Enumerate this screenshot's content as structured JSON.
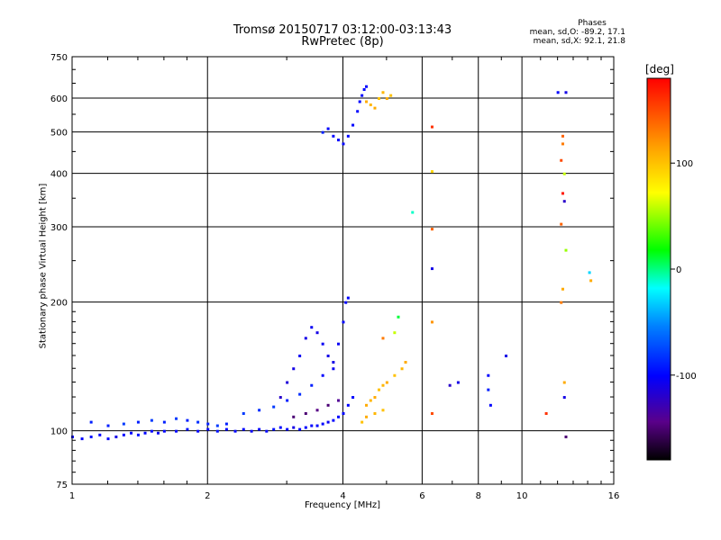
{
  "title_line1": "Tromsø 20150717 03:12:00-03:13:43",
  "title_line2": "RwPretec (8p)",
  "phases": {
    "heading": "Phases",
    "line_o": "mean, sd,O: -89.2, 17.1",
    "line_x": "mean, sd,X:  92.1, 21.8"
  },
  "colorbar": {
    "unit_label": "[deg]",
    "ticks": [
      {
        "value": 100,
        "label": "100"
      },
      {
        "value": 0,
        "label": "0"
      },
      {
        "value": -100,
        "label": "-100"
      }
    ],
    "range": [
      -180,
      180
    ]
  },
  "chart_data": {
    "type": "scatter",
    "xlabel": "Frequency [MHz]",
    "ylabel": "Stationary phase Virtual Height [km]",
    "x_scale": "log",
    "y_scale": "log",
    "xlim": [
      1,
      16
    ],
    "ylim": [
      75,
      750
    ],
    "x_ticks": [
      1,
      2,
      4,
      6,
      8,
      10,
      16
    ],
    "x_tick_labels": [
      "1",
      "2",
      "4",
      "6",
      "8",
      "10",
      "16"
    ],
    "y_ticks": [
      75,
      100,
      200,
      300,
      400,
      500,
      600,
      750
    ],
    "y_tick_labels": [
      "75",
      "100",
      "200",
      "300",
      "400",
      "500",
      "600",
      "750"
    ],
    "grid": true,
    "series": [
      {
        "color_by": "phase_deg",
        "points": [
          [
            1.0,
            97,
            -100
          ],
          [
            1.05,
            96,
            -100
          ],
          [
            1.1,
            97,
            -95
          ],
          [
            1.15,
            98,
            -100
          ],
          [
            1.2,
            96,
            -100
          ],
          [
            1.25,
            97,
            -110
          ],
          [
            1.3,
            98,
            -100
          ],
          [
            1.35,
            99,
            -100
          ],
          [
            1.4,
            98,
            -95
          ],
          [
            1.45,
            99,
            -100
          ],
          [
            1.5,
            100,
            -100
          ],
          [
            1.55,
            99,
            -105
          ],
          [
            1.6,
            100,
            -100
          ],
          [
            1.7,
            100,
            -100
          ],
          [
            1.8,
            101,
            -95
          ],
          [
            1.9,
            100,
            -100
          ],
          [
            2.0,
            101,
            -100
          ],
          [
            2.1,
            100,
            -95
          ],
          [
            2.2,
            101,
            -100
          ],
          [
            2.3,
            100,
            -100
          ],
          [
            2.4,
            101,
            -100
          ],
          [
            2.5,
            100,
            -105
          ],
          [
            2.6,
            101,
            -100
          ],
          [
            2.7,
            100,
            -100
          ],
          [
            2.8,
            101,
            -95
          ],
          [
            2.9,
            102,
            -100
          ],
          [
            3.0,
            101,
            -100
          ],
          [
            3.1,
            102,
            -110
          ],
          [
            3.2,
            101,
            -100
          ],
          [
            3.3,
            102,
            -100
          ],
          [
            3.4,
            103,
            -100
          ],
          [
            3.5,
            103,
            -100
          ],
          [
            3.6,
            104,
            -100
          ],
          [
            3.7,
            105,
            -105
          ],
          [
            3.8,
            106,
            -100
          ],
          [
            3.9,
            108,
            -100
          ],
          [
            4.0,
            110,
            -100
          ],
          [
            4.1,
            115,
            -100
          ],
          [
            4.2,
            120,
            -100
          ],
          [
            1.1,
            105,
            -90
          ],
          [
            1.2,
            103,
            -90
          ],
          [
            1.3,
            104,
            -80
          ],
          [
            1.4,
            105,
            -90
          ],
          [
            1.5,
            106,
            -80
          ],
          [
            1.6,
            105,
            -90
          ],
          [
            1.7,
            107,
            -80
          ],
          [
            1.8,
            106,
            -90
          ],
          [
            1.9,
            105,
            -85
          ],
          [
            2.0,
            104,
            -90
          ],
          [
            2.1,
            103,
            -80
          ],
          [
            2.2,
            104,
            -90
          ],
          [
            2.4,
            110,
            -80
          ],
          [
            2.6,
            112,
            -85
          ],
          [
            2.8,
            114,
            -80
          ],
          [
            3.0,
            118,
            -90
          ],
          [
            3.2,
            122,
            -85
          ],
          [
            3.4,
            128,
            -90
          ],
          [
            3.6,
            135,
            -100
          ],
          [
            3.8,
            145,
            -110
          ],
          [
            3.9,
            160,
            -105
          ],
          [
            4.0,
            180,
            -100
          ],
          [
            4.05,
            200,
            -100
          ],
          [
            4.1,
            205,
            -100
          ],
          [
            2.9,
            120,
            -120
          ],
          [
            3.0,
            130,
            -115
          ],
          [
            3.1,
            140,
            -110
          ],
          [
            3.2,
            150,
            -105
          ],
          [
            3.3,
            165,
            -110
          ],
          [
            3.4,
            175,
            -105
          ],
          [
            3.5,
            170,
            -110
          ],
          [
            3.6,
            160,
            -105
          ],
          [
            3.7,
            150,
            -110
          ],
          [
            3.8,
            140,
            -105
          ],
          [
            3.1,
            108,
            -150
          ],
          [
            3.3,
            110,
            -150
          ],
          [
            3.5,
            112,
            -145
          ],
          [
            3.7,
            115,
            -150
          ],
          [
            3.9,
            118,
            -140
          ],
          [
            4.5,
            115,
            110
          ],
          [
            4.6,
            118,
            105
          ],
          [
            4.7,
            120,
            110
          ],
          [
            4.8,
            125,
            100
          ],
          [
            4.9,
            128,
            105
          ],
          [
            5.0,
            130,
            110
          ],
          [
            5.2,
            135,
            100
          ],
          [
            5.4,
            140,
            105
          ],
          [
            5.5,
            145,
            110
          ],
          [
            4.4,
            105,
            100
          ],
          [
            4.5,
            108,
            110
          ],
          [
            4.7,
            110,
            105
          ],
          [
            4.9,
            112,
            100
          ],
          [
            4.0,
            470,
            -100
          ],
          [
            4.1,
            490,
            -100
          ],
          [
            4.2,
            520,
            -100
          ],
          [
            4.3,
            560,
            -100
          ],
          [
            4.35,
            590,
            -100
          ],
          [
            4.4,
            610,
            -100
          ],
          [
            4.45,
            630,
            -100
          ],
          [
            4.5,
            640,
            -100
          ],
          [
            3.6,
            500,
            -90
          ],
          [
            3.7,
            510,
            -100
          ],
          [
            3.8,
            490,
            -100
          ],
          [
            3.9,
            480,
            -100
          ],
          [
            4.5,
            590,
            110
          ],
          [
            4.6,
            580,
            105
          ],
          [
            4.7,
            570,
            110
          ],
          [
            4.8,
            600,
            100
          ],
          [
            4.9,
            620,
            105
          ],
          [
            5.0,
            600,
            110
          ],
          [
            5.1,
            610,
            100
          ],
          [
            6.3,
            515,
            160
          ],
          [
            6.3,
            405,
            90
          ],
          [
            6.3,
            297,
            140
          ],
          [
            6.3,
            240,
            -110
          ],
          [
            6.3,
            180,
            120
          ],
          [
            6.3,
            110,
            150
          ],
          [
            6.9,
            128,
            -120
          ],
          [
            8.4,
            135,
            -100
          ],
          [
            8.4,
            125,
            -90
          ],
          [
            8.5,
            115,
            -100
          ],
          [
            9.2,
            150,
            -110
          ],
          [
            7.2,
            130,
            -110
          ],
          [
            11.3,
            110,
            160
          ],
          [
            12.0,
            620,
            -100
          ],
          [
            12.5,
            620,
            -110
          ],
          [
            12.3,
            490,
            140
          ],
          [
            12.3,
            470,
            130
          ],
          [
            12.2,
            430,
            150
          ],
          [
            12.4,
            400,
            60
          ],
          [
            12.3,
            360,
            170
          ],
          [
            12.4,
            345,
            -120
          ],
          [
            12.2,
            305,
            140
          ],
          [
            12.5,
            265,
            50
          ],
          [
            12.3,
            215,
            110
          ],
          [
            12.2,
            200,
            130
          ],
          [
            12.4,
            130,
            110
          ],
          [
            12.4,
            120,
            -110
          ],
          [
            12.5,
            97,
            -150
          ],
          [
            14.1,
            235,
            -30
          ],
          [
            14.2,
            225,
            110
          ],
          [
            5.7,
            325,
            -10
          ],
          [
            5.3,
            185,
            10
          ],
          [
            5.2,
            170,
            60
          ],
          [
            4.9,
            165,
            130
          ]
        ]
      }
    ]
  }
}
